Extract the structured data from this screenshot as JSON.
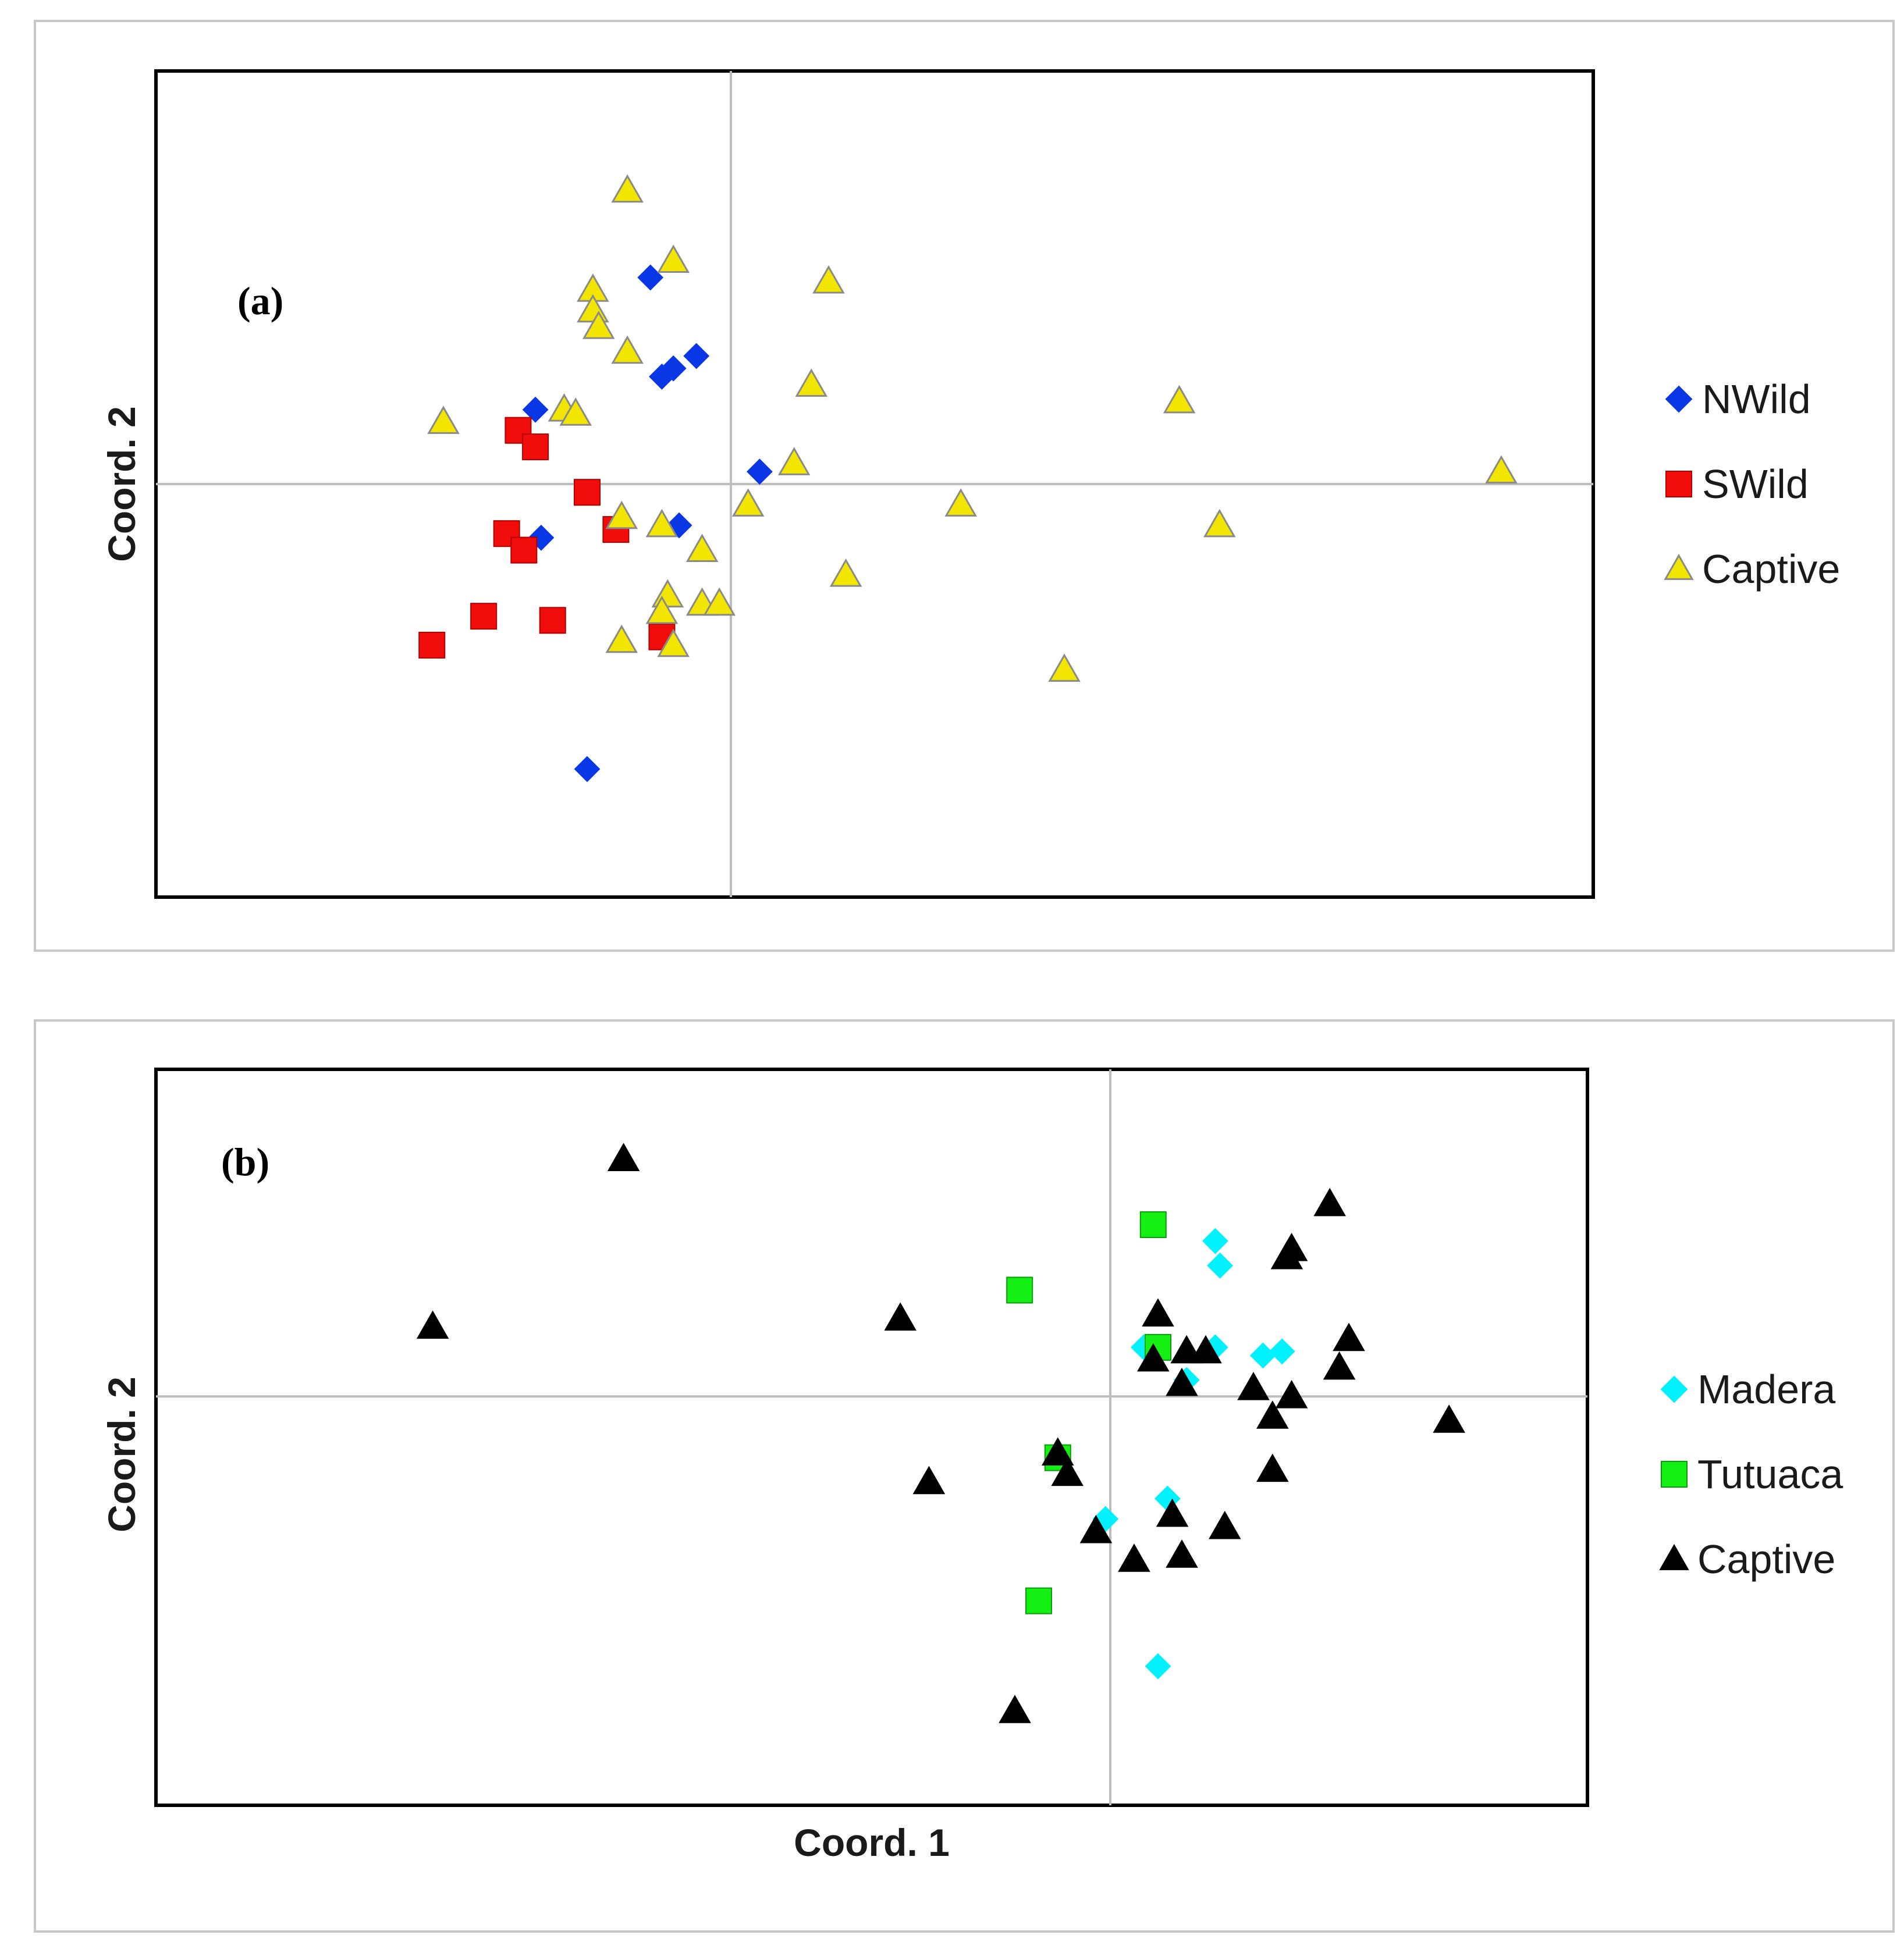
{
  "chart_data": [
    {
      "type": "scatter",
      "panel_label": "(a)",
      "xlabel": "",
      "ylabel": "Coord. 2",
      "xlim": [
        -1.0,
        1.5
      ],
      "ylim": [
        -1.0,
        1.0
      ],
      "origin_lines": true,
      "legend_position": "right",
      "series": [
        {
          "name": "NWild",
          "marker": "diamond",
          "color": "#0a37e6",
          "stroke": "#0a37e6",
          "points": [
            [
              -0.14,
              0.5
            ],
            [
              -0.12,
              0.26
            ],
            [
              -0.1,
              0.28
            ],
            [
              -0.06,
              0.31
            ],
            [
              -0.34,
              0.18
            ],
            [
              0.05,
              0.03
            ],
            [
              -0.33,
              -0.13
            ],
            [
              -0.09,
              -0.1
            ],
            [
              -0.25,
              -0.69
            ]
          ]
        },
        {
          "name": "SWild",
          "marker": "square",
          "color": "#f20d0d",
          "stroke": "#b00000",
          "points": [
            [
              -0.37,
              0.13
            ],
            [
              -0.34,
              0.09
            ],
            [
              -0.25,
              -0.02
            ],
            [
              -0.2,
              -0.11
            ],
            [
              -0.39,
              -0.12
            ],
            [
              -0.36,
              -0.16
            ],
            [
              -0.43,
              -0.32
            ],
            [
              -0.31,
              -0.33
            ],
            [
              -0.52,
              -0.39
            ],
            [
              -0.12,
              -0.37
            ]
          ]
        },
        {
          "name": "Captive",
          "marker": "triangle",
          "color": "#f2e600",
          "stroke": "#8a8a8a",
          "points": [
            [
              -0.18,
              0.71
            ],
            [
              -0.1,
              0.54
            ],
            [
              0.17,
              0.49
            ],
            [
              -0.24,
              0.47
            ],
            [
              -0.24,
              0.42
            ],
            [
              -0.23,
              0.38
            ],
            [
              -0.18,
              0.32
            ],
            [
              0.14,
              0.24
            ],
            [
              -0.29,
              0.18
            ],
            [
              -0.27,
              0.17
            ],
            [
              -0.5,
              0.15
            ],
            [
              0.78,
              0.2
            ],
            [
              0.11,
              0.05
            ],
            [
              1.34,
              0.03
            ],
            [
              0.03,
              -0.05
            ],
            [
              0.4,
              -0.05
            ],
            [
              -0.19,
              -0.08
            ],
            [
              -0.12,
              -0.1
            ],
            [
              0.85,
              -0.1
            ],
            [
              -0.05,
              -0.16
            ],
            [
              0.2,
              -0.22
            ],
            [
              -0.11,
              -0.27
            ],
            [
              -0.12,
              -0.31
            ],
            [
              -0.05,
              -0.29
            ],
            [
              -0.02,
              -0.29
            ],
            [
              -0.19,
              -0.38
            ],
            [
              -0.1,
              -0.39
            ],
            [
              0.58,
              -0.45
            ]
          ]
        }
      ]
    },
    {
      "type": "scatter",
      "panel_label": "(b)",
      "xlabel": "Coord. 1",
      "ylabel": "Coord. 2",
      "xlim": [
        -2.0,
        1.0
      ],
      "ylim": [
        -1.0,
        0.8
      ],
      "origin_lines": true,
      "legend_position": "right",
      "series": [
        {
          "name": "Madera",
          "marker": "diamond",
          "color": "#00f2ff",
          "stroke": "#00f2ff",
          "points": [
            [
              0.22,
              0.38
            ],
            [
              0.23,
              0.32
            ],
            [
              0.07,
              0.12
            ],
            [
              0.22,
              0.12
            ],
            [
              0.36,
              0.11
            ],
            [
              0.32,
              0.1
            ],
            [
              0.16,
              0.04
            ],
            [
              0.12,
              -0.25
            ],
            [
              -0.01,
              -0.3
            ],
            [
              0.1,
              -0.66
            ]
          ]
        },
        {
          "name": "Tutuaca",
          "marker": "square",
          "color": "#14f014",
          "stroke": "#0a9c0a",
          "points": [
            [
              0.09,
              0.42
            ],
            [
              -0.19,
              0.26
            ],
            [
              0.1,
              0.12
            ],
            [
              -0.11,
              -0.15
            ],
            [
              -0.15,
              -0.5
            ]
          ]
        },
        {
          "name": "Captive",
          "marker": "triangle",
          "color": "#000000",
          "stroke": "#000000",
          "points": [
            [
              -1.02,
              0.58
            ],
            [
              -1.42,
              0.17
            ],
            [
              -0.44,
              0.19
            ],
            [
              0.46,
              0.47
            ],
            [
              0.38,
              0.36
            ],
            [
              0.37,
              0.34
            ],
            [
              0.1,
              0.2
            ],
            [
              0.09,
              0.09
            ],
            [
              0.16,
              0.11
            ],
            [
              0.2,
              0.11
            ],
            [
              0.5,
              0.14
            ],
            [
              0.48,
              0.07
            ],
            [
              0.15,
              0.03
            ],
            [
              0.3,
              0.02
            ],
            [
              0.38,
              0.0
            ],
            [
              0.34,
              -0.05
            ],
            [
              0.71,
              -0.06
            ],
            [
              -0.11,
              -0.14
            ],
            [
              -0.09,
              -0.19
            ],
            [
              0.34,
              -0.18
            ],
            [
              -0.38,
              -0.21
            ],
            [
              0.13,
              -0.29
            ],
            [
              -0.03,
              -0.33
            ],
            [
              0.24,
              -0.32
            ],
            [
              0.05,
              -0.4
            ],
            [
              0.15,
              -0.39
            ],
            [
              -0.2,
              -0.77
            ]
          ]
        }
      ]
    }
  ]
}
